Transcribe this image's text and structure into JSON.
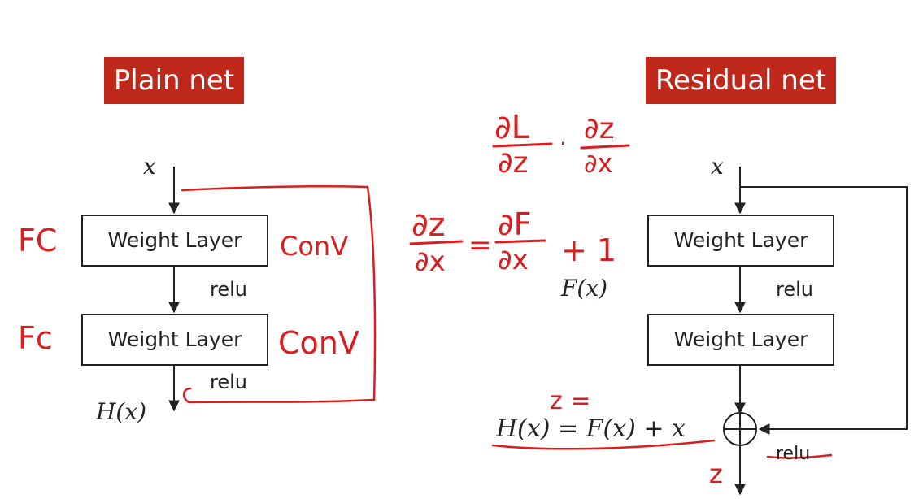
{
  "plain": {
    "title": "Plain net",
    "input": "x",
    "layer1": "Weight Layer",
    "layer2": "Weight Layer",
    "act1": "relu",
    "act2": "relu",
    "output": "H(x)",
    "note_fc1": "FC",
    "note_fc2": "Fc",
    "note_conv1": "ConV",
    "note_conv2": "ConV"
  },
  "residual": {
    "title": "Residual net",
    "input": "x",
    "layer1": "Weight Layer",
    "layer2": "Weight Layer",
    "act1": "relu",
    "act2": "relu",
    "fx": "F(x)",
    "equation": "H(x) = F(x) + x",
    "note_z_eq": "z =",
    "note_z_out": "z"
  },
  "annotations": {
    "chain_rule": {
      "num1": "∂L",
      "den1": "∂z",
      "dot": "·",
      "num2": "∂z",
      "den2": "∂x"
    },
    "gradient": {
      "num1": "∂z",
      "den1": "∂x",
      "eq": "=",
      "num2": "∂F",
      "den2": "∂x",
      "plus_one": "+ 1"
    }
  },
  "colors": {
    "title_bg": "#c0281c",
    "ink_red": "#d81e1e",
    "line": "#222222"
  }
}
